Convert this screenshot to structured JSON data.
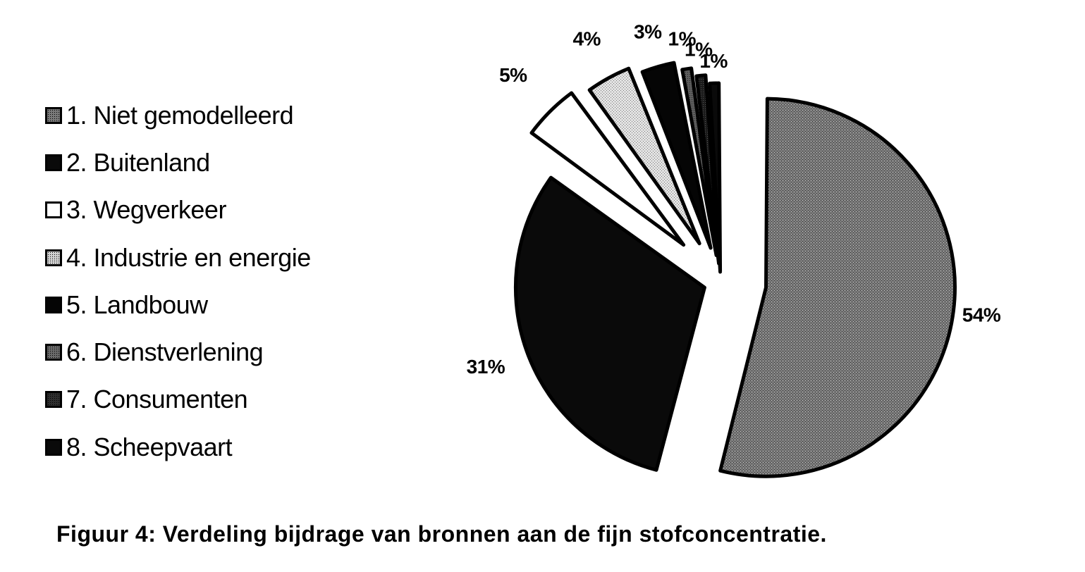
{
  "chart_data": {
    "type": "pie",
    "categories": [
      "1. Niet gemodelleerd",
      "2. Buitenland",
      "3. Wegverkeer",
      "4. Industrie en energie",
      "5. Landbouw",
      "6. Dienstverlening",
      "7. Consumenten",
      "8. Scheepvaart"
    ],
    "values": [
      54,
      31,
      5,
      4,
      3,
      1,
      1,
      1
    ],
    "data_labels": [
      "54%",
      "31%",
      "5%",
      "4%",
      "3%",
      "1%",
      "1%",
      "1%"
    ],
    "colors": [
      "#7a7a7a",
      "#0a0a0a",
      "#ffffff",
      "#d2d2d2",
      "#050505",
      "#6a6a6a",
      "#2e2e2e",
      "#0a0a0a"
    ],
    "legend_position": "left",
    "exploded": true
  },
  "caption": "Figuur 4: Verdeling bijdrage van bronnen aan de fijn stofconcentratie."
}
